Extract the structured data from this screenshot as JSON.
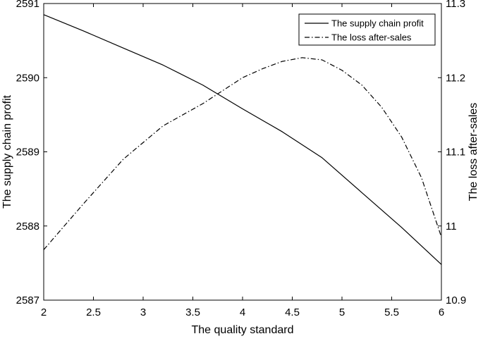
{
  "chart_data": {
    "type": "line",
    "title": "",
    "xlabel": "The quality standard",
    "ylabel_left": "The supply chain profit",
    "ylabel_right": "The loss after-sales",
    "xlim": [
      2,
      6
    ],
    "ylim_left": [
      2587,
      2591
    ],
    "ylim_right": [
      10.9,
      11.3
    ],
    "x_ticks": [
      "2",
      "2.5",
      "3",
      "3.5",
      "4",
      "4.5",
      "5",
      "5.5",
      "6"
    ],
    "y_left_ticks": [
      "2587",
      "2588",
      "2589",
      "2590",
      "2591"
    ],
    "y_right_ticks": [
      "10.9",
      "11",
      "11.1",
      "11.2",
      "11.3"
    ],
    "grid": false,
    "legend_position": "top-right",
    "series": [
      {
        "name": "The supply chain profit",
        "axis": "left",
        "line_style": "solid",
        "color": "#000000",
        "x": [
          2.0,
          2.4,
          2.8,
          3.2,
          3.6,
          4.0,
          4.4,
          4.8,
          5.2,
          5.6,
          6.0
        ],
        "y": [
          2590.85,
          2590.63,
          2590.4,
          2590.17,
          2589.9,
          2589.58,
          2589.27,
          2588.92,
          2588.45,
          2587.98,
          2587.48
        ]
      },
      {
        "name": "The loss after-sales",
        "axis": "right",
        "line_style": "dashdot",
        "color": "#000000",
        "x": [
          2.0,
          2.4,
          2.8,
          3.2,
          3.6,
          4.0,
          4.2,
          4.4,
          4.6,
          4.8,
          5.0,
          5.2,
          5.4,
          5.6,
          5.8,
          6.0
        ],
        "y": [
          10.968,
          11.03,
          11.09,
          11.135,
          11.165,
          11.2,
          11.212,
          11.222,
          11.227,
          11.224,
          11.21,
          11.19,
          11.16,
          11.12,
          11.065,
          10.985
        ]
      }
    ]
  }
}
